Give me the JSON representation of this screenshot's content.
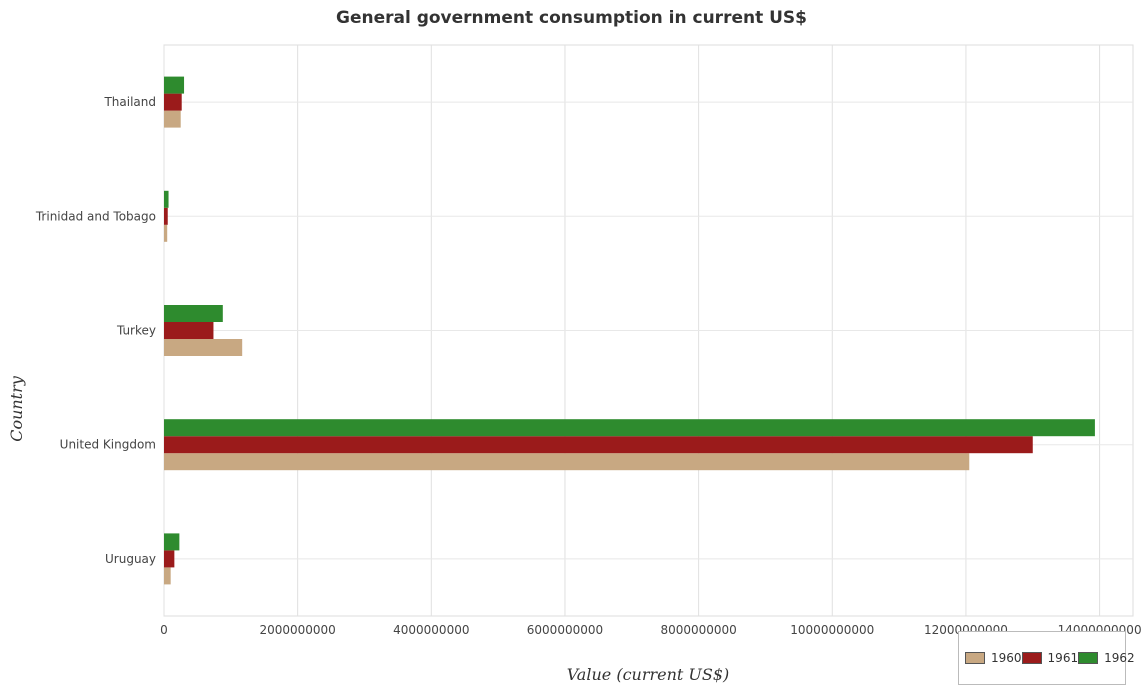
{
  "title": "General government consumption in current US$",
  "chart_data": {
    "type": "bar",
    "orientation": "horizontal",
    "title": "General government consumption in current US$",
    "xlabel": "Value (current US$)",
    "ylabel": "Country",
    "xlim": [
      0,
      14500000000
    ],
    "xticks": [
      0,
      2000000000,
      4000000000,
      6000000000,
      8000000000,
      10000000000,
      12000000000,
      14000000000
    ],
    "xtick_labels": [
      "0",
      "2000000000",
      "4000000000",
      "6000000000",
      "8000000000",
      "10000000000",
      "12000000000",
      "14000000000"
    ],
    "grid": true,
    "legend_position": "bottom-right",
    "categories": [
      "Thailand",
      "Trinidad and Tobago",
      "Turkey",
      "United Kingdom",
      "Uruguay"
    ],
    "series": [
      {
        "name": "1960",
        "color": "#c8a882",
        "values": [
          250000000,
          48000000,
          1170000000,
          12050000000,
          100000000
        ]
      },
      {
        "name": "1961",
        "color": "#9b1b1b",
        "values": [
          265000000,
          56000000,
          740000000,
          13000000000,
          155000000
        ]
      },
      {
        "name": "1962",
        "color": "#2e8b2e",
        "values": [
          300000000,
          68000000,
          880000000,
          13930000000,
          230000000
        ]
      }
    ]
  }
}
